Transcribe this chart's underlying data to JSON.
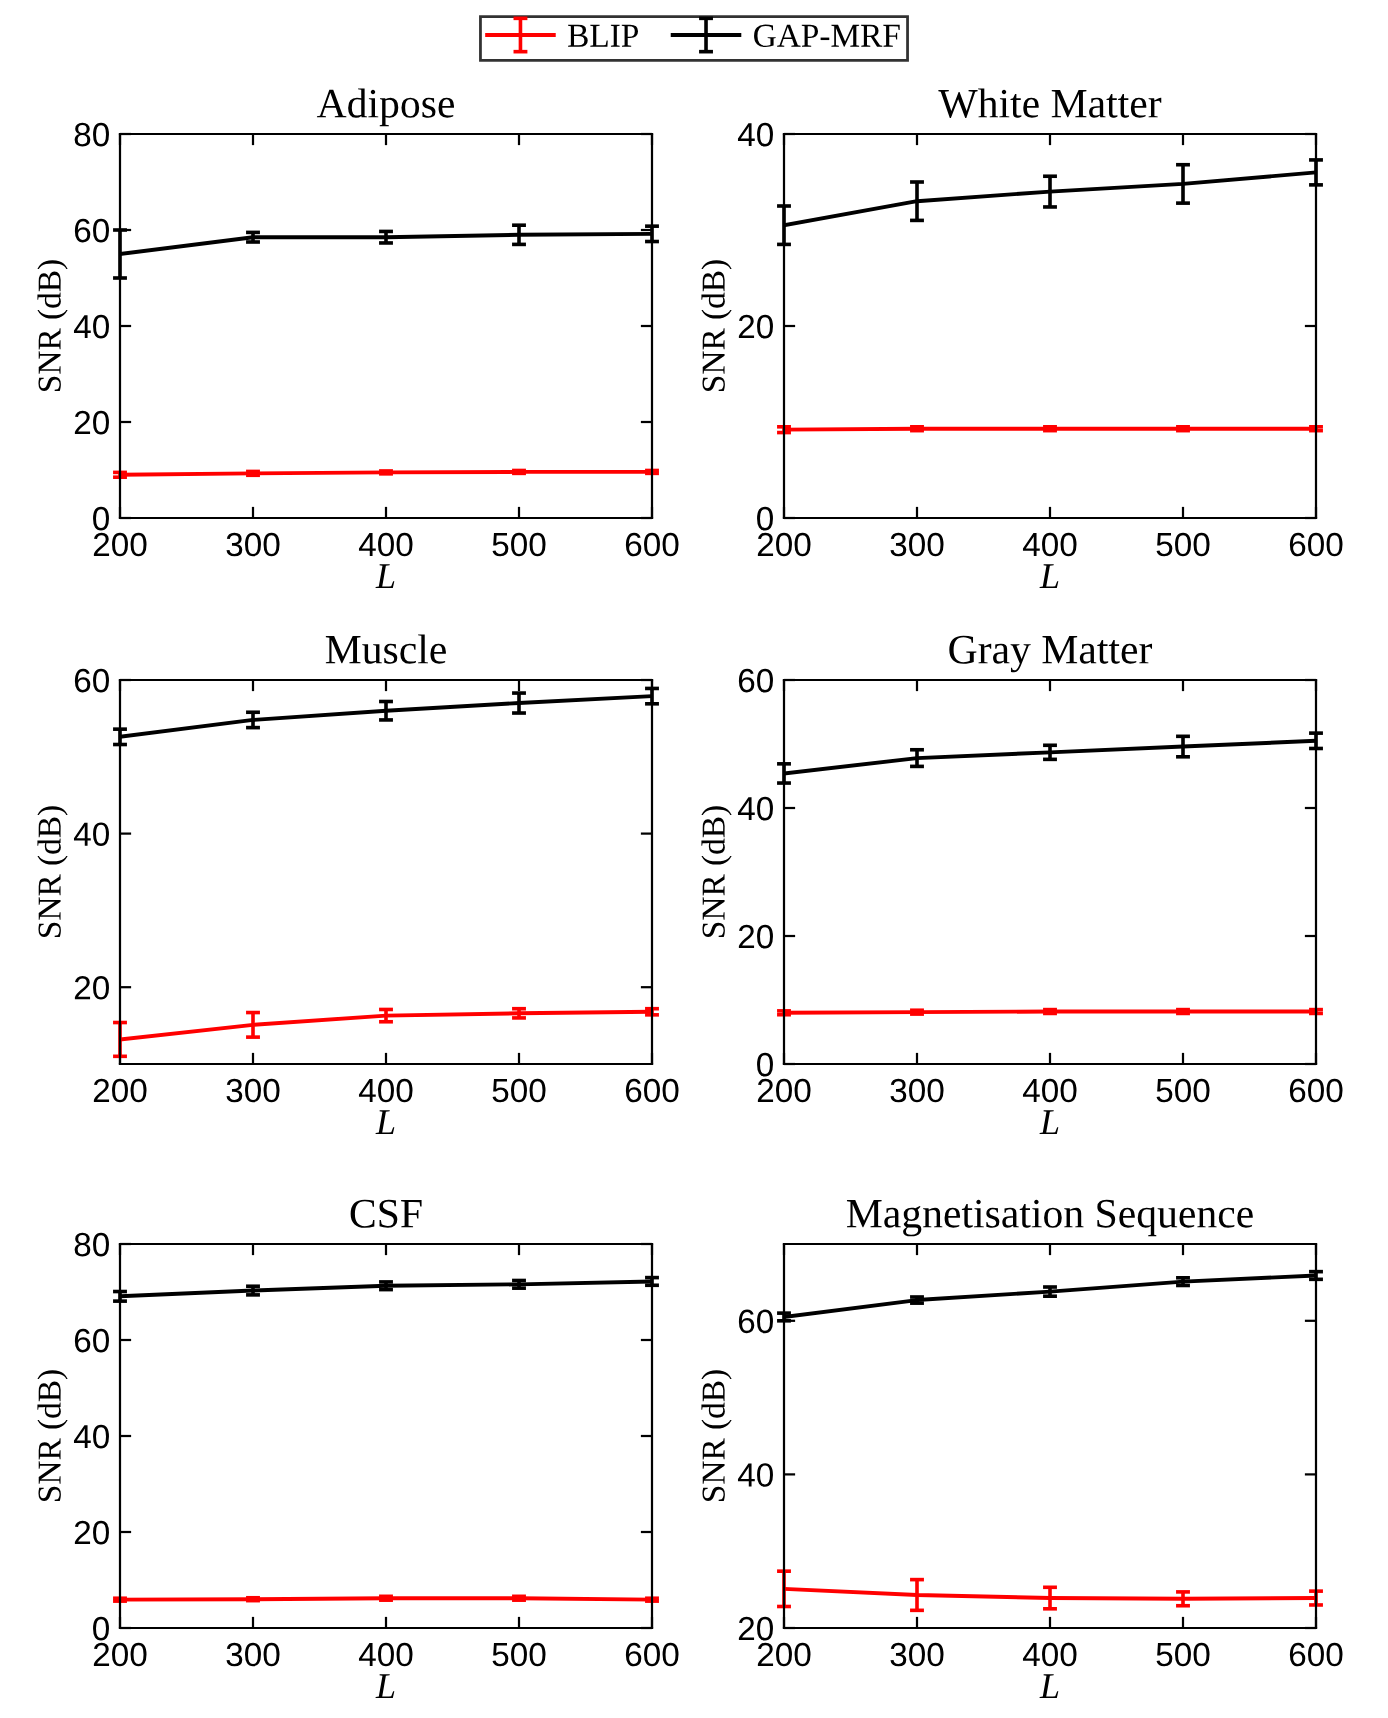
{
  "chart_data": [
    {
      "type": "line",
      "title": "Adipose",
      "xlabel": "L",
      "ylabel": "SNR (dB)",
      "x": [
        200,
        300,
        400,
        500,
        600
      ],
      "xlim": [
        200,
        600
      ],
      "xticks": [
        200,
        300,
        400,
        500,
        600
      ],
      "ylim": [
        0,
        80
      ],
      "yticks": [
        0,
        20,
        40,
        60,
        80
      ],
      "legend": "top",
      "series": [
        {
          "name": "BLIP",
          "color": "#ff0000",
          "values": [
            9,
            9.3,
            9.5,
            9.6,
            9.6
          ],
          "errors": [
            0.5,
            0.4,
            0.3,
            0.3,
            0.3
          ]
        },
        {
          "name": "GAP-MRF",
          "color": "#000000",
          "values": [
            55,
            58.5,
            58.5,
            59,
            59.2
          ],
          "errors": [
            5,
            1,
            1.2,
            2,
            1.6
          ]
        }
      ]
    },
    {
      "type": "line",
      "title": "White Matter",
      "xlabel": "L",
      "ylabel": "SNR (dB)",
      "x": [
        200,
        300,
        400,
        500,
        600
      ],
      "xlim": [
        200,
        600
      ],
      "xticks": [
        200,
        300,
        400,
        500,
        600
      ],
      "ylim": [
        0,
        40
      ],
      "yticks": [
        0,
        20,
        40
      ],
      "series": [
        {
          "color": "#ff0000",
          "values": [
            9.2,
            9.3,
            9.3,
            9.3,
            9.3
          ],
          "errors": [
            0.3,
            0.2,
            0.2,
            0.2,
            0.2
          ]
        },
        {
          "color": "#000000",
          "values": [
            30.5,
            33,
            34,
            34.8,
            36
          ],
          "errors": [
            2,
            2,
            1.6,
            2,
            1.3
          ]
        }
      ]
    },
    {
      "type": "line",
      "title": "Muscle",
      "xlabel": "L",
      "ylabel": "SNR (dB)",
      "x": [
        200,
        300,
        400,
        500,
        600
      ],
      "xlim": [
        200,
        600
      ],
      "xticks": [
        200,
        300,
        400,
        500,
        600
      ],
      "ylim": [
        10,
        60
      ],
      "yticks": [
        20,
        40,
        60
      ],
      "series": [
        {
          "color": "#ff0000",
          "values": [
            13.2,
            15.1,
            16.3,
            16.6,
            16.8
          ],
          "errors": [
            2.2,
            1.6,
            0.8,
            0.6,
            0.4
          ]
        },
        {
          "color": "#000000",
          "values": [
            52.6,
            54.8,
            56.0,
            57.0,
            57.9
          ],
          "errors": [
            1,
            1,
            1.2,
            1.3,
            1
          ]
        }
      ]
    },
    {
      "type": "line",
      "title": "Gray Matter",
      "xlabel": "L",
      "ylabel": "SNR (dB)",
      "x": [
        200,
        300,
        400,
        500,
        600
      ],
      "xlim": [
        200,
        600
      ],
      "xticks": [
        200,
        300,
        400,
        500,
        600
      ],
      "ylim": [
        0,
        60
      ],
      "yticks": [
        0,
        20,
        40,
        60
      ],
      "series": [
        {
          "color": "#ff0000",
          "values": [
            8.0,
            8.1,
            8.2,
            8.2,
            8.2
          ],
          "errors": [
            0.3,
            0.3,
            0.3,
            0.3,
            0.3
          ]
        },
        {
          "color": "#000000",
          "values": [
            45.4,
            47.8,
            48.7,
            49.6,
            50.5
          ],
          "errors": [
            1.5,
            1.3,
            1.1,
            1.6,
            1.2
          ]
        }
      ]
    },
    {
      "type": "line",
      "title": "CSF",
      "xlabel": "L",
      "ylabel": "SNR (dB)",
      "x": [
        200,
        300,
        400,
        500,
        600
      ],
      "xlim": [
        200,
        600
      ],
      "xticks": [
        200,
        300,
        400,
        500,
        600
      ],
      "ylim": [
        0,
        80
      ],
      "yticks": [
        0,
        20,
        40,
        60,
        80
      ],
      "series": [
        {
          "color": "#ff0000",
          "values": [
            5.9,
            6.0,
            6.2,
            6.2,
            5.9
          ],
          "errors": [
            0.3,
            0.3,
            0.4,
            0.4,
            0.3
          ]
        },
        {
          "color": "#000000",
          "values": [
            69.1,
            70.3,
            71.3,
            71.6,
            72.2
          ],
          "errors": [
            1,
            0.9,
            0.8,
            0.8,
            0.8
          ]
        }
      ]
    },
    {
      "type": "line",
      "title": "Magnetisation Sequence",
      "xlabel": "L",
      "ylabel": "SNR (dB)",
      "x": [
        200,
        300,
        400,
        500,
        600
      ],
      "xlim": [
        200,
        600
      ],
      "xticks": [
        200,
        300,
        400,
        500,
        600
      ],
      "ylim": [
        20,
        70
      ],
      "yticks": [
        20,
        40,
        60
      ],
      "series": [
        {
          "color": "#ff0000",
          "values": [
            25.1,
            24.3,
            23.9,
            23.8,
            23.9
          ],
          "errors": [
            2.3,
            2,
            1.4,
            0.9,
            0.9
          ]
        },
        {
          "color": "#000000",
          "values": [
            60.5,
            62.7,
            63.8,
            65.1,
            65.9
          ],
          "errors": [
            0.5,
            0.4,
            0.6,
            0.5,
            0.5
          ]
        }
      ]
    }
  ]
}
